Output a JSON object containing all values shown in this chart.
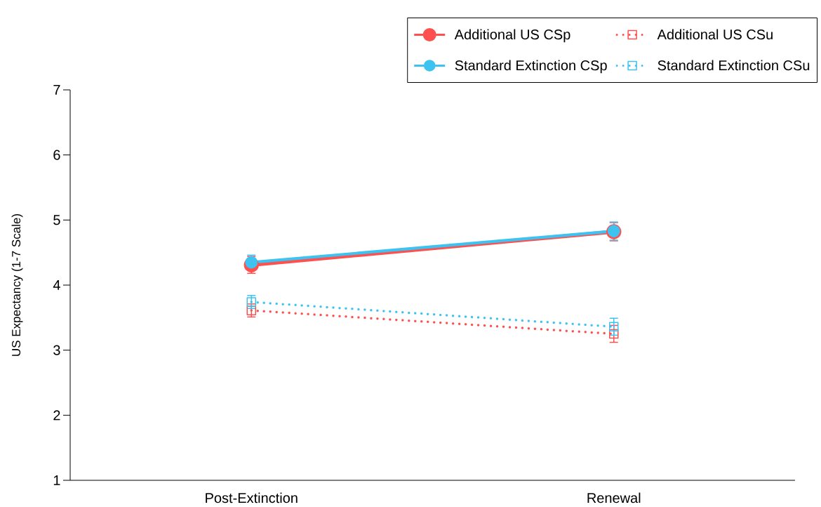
{
  "chart_data": {
    "type": "line",
    "ylabel": "US Expectancy (1-7 Scale)",
    "categories": [
      "Post-Extinction",
      "Renewal"
    ],
    "ylim": [
      1,
      7
    ],
    "yticks": [
      1,
      2,
      3,
      4,
      5,
      6,
      7
    ],
    "grid": false,
    "legend": "top right",
    "series": [
      {
        "name": "Additional US CSp",
        "color": "#ff5050",
        "values": [
          4.31,
          4.82
        ],
        "errors": [
          0.13,
          0.14
        ],
        "marker": "circle",
        "line_style": "solid"
      },
      {
        "name": "Additional US CSu",
        "color": "#ff5050",
        "values": [
          3.61,
          3.25
        ],
        "errors": [
          0.1,
          0.13
        ],
        "marker": "square",
        "line_style": "dotted"
      },
      {
        "name": "Standard Extinction CSp",
        "color": "#3ec3f0",
        "values": [
          4.35,
          4.83
        ],
        "errors": [
          0.11,
          0.14
        ],
        "marker": "circle",
        "line_style": "solid"
      },
      {
        "name": "Standard Extinction CSu",
        "color": "#3ec3f0",
        "values": [
          3.74,
          3.36
        ],
        "errors": [
          0.1,
          0.13
        ],
        "marker": "square",
        "line_style": "dotted"
      }
    ]
  }
}
